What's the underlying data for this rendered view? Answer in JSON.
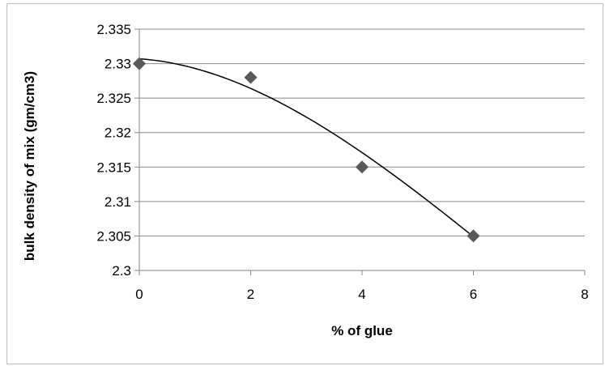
{
  "chart_data": {
    "type": "scatter",
    "title": "",
    "xlabel": "% of glue",
    "ylabel": "bulk density of mix (gm/cm3)",
    "xlim": [
      0,
      8
    ],
    "ylim": [
      2.3,
      2.335
    ],
    "x_ticks": [
      "0",
      "2",
      "4",
      "6",
      "8"
    ],
    "y_ticks": [
      "2.3",
      "2.305",
      "2.31",
      "2.315",
      "2.32",
      "2.325",
      "2.33",
      "2.335"
    ],
    "grid": "horizontal",
    "legend": "none",
    "series": [
      {
        "marker": "diamond",
        "color": "#595959",
        "points": [
          {
            "x": 0,
            "y": 2.33
          },
          {
            "x": 2,
            "y": 2.328
          },
          {
            "x": 4,
            "y": 2.315
          },
          {
            "x": 6,
            "y": 2.305
          }
        ]
      }
    ],
    "trendline": {
      "type": "polynomial",
      "color": "#000000",
      "curve": [
        {
          "x": 0,
          "y": 2.3307
        },
        {
          "x": 2,
          "y": 2.3264
        },
        {
          "x": 4,
          "y": 2.3171
        },
        {
          "x": 6,
          "y": 2.3049
        }
      ]
    },
    "colors": {
      "grid": "#868686",
      "axis": "#868686",
      "marker": "#595959",
      "trendline": "#000000"
    }
  }
}
